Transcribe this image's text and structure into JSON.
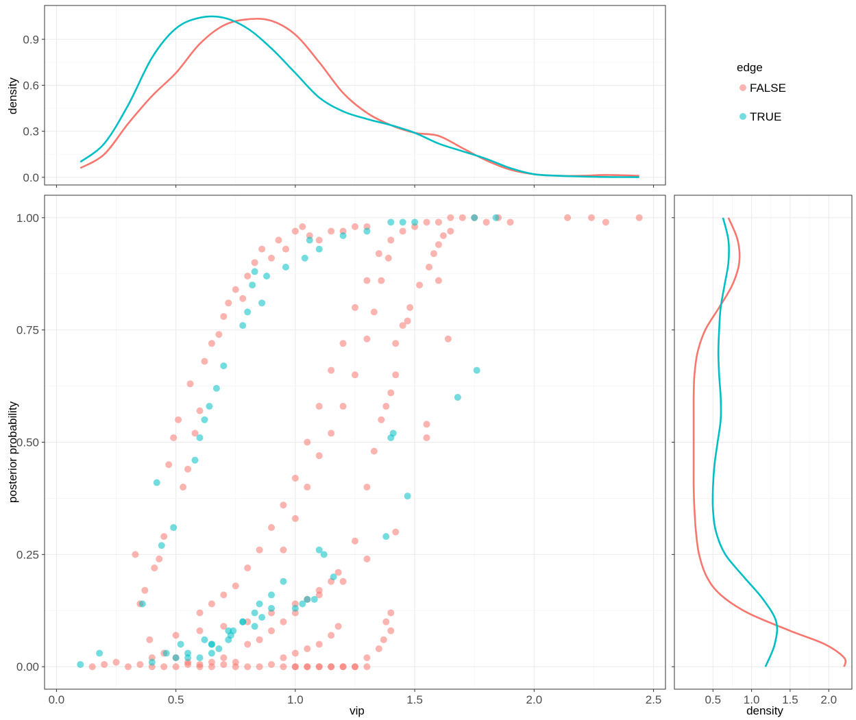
{
  "chart_data": [
    {
      "id": "top-density",
      "type": "line",
      "xlabel": "",
      "ylabel": "density",
      "xlim": [
        -0.05,
        2.55
      ],
      "ylim": [
        -0.05,
        1.12
      ],
      "y_ticks": [
        "0.0",
        "0.3",
        "0.6",
        "0.9"
      ],
      "y_tick_values": [
        0.0,
        0.3,
        0.6,
        0.9
      ],
      "grid": true,
      "series": [
        {
          "name": "FALSE",
          "color": "#f8766d",
          "x": [
            0.1,
            0.2,
            0.3,
            0.4,
            0.5,
            0.6,
            0.7,
            0.8,
            0.9,
            1.0,
            1.1,
            1.2,
            1.3,
            1.4,
            1.5,
            1.6,
            1.7,
            1.8,
            1.9,
            2.0,
            2.1,
            2.2,
            2.3,
            2.44
          ],
          "y": [
            0.06,
            0.15,
            0.35,
            0.53,
            0.68,
            0.87,
            0.99,
            1.03,
            1.02,
            0.93,
            0.75,
            0.55,
            0.42,
            0.34,
            0.29,
            0.27,
            0.19,
            0.11,
            0.05,
            0.02,
            0.01,
            0.01,
            0.015,
            0.01
          ]
        },
        {
          "name": "TRUE",
          "color": "#00bfc4",
          "x": [
            0.1,
            0.2,
            0.3,
            0.4,
            0.5,
            0.6,
            0.7,
            0.8,
            0.9,
            1.0,
            1.1,
            1.2,
            1.3,
            1.4,
            1.5,
            1.6,
            1.7,
            1.8,
            1.9,
            2.0,
            2.1,
            2.2,
            2.3,
            2.44
          ],
          "y": [
            0.1,
            0.22,
            0.47,
            0.78,
            0.97,
            1.04,
            1.04,
            0.97,
            0.84,
            0.68,
            0.52,
            0.43,
            0.38,
            0.34,
            0.29,
            0.22,
            0.17,
            0.12,
            0.06,
            0.02,
            0.01,
            0.005,
            0.002,
            0.001
          ]
        }
      ]
    },
    {
      "id": "main-scatter",
      "type": "scatter",
      "xlabel": "vip",
      "ylabel": "posterior probability",
      "xlim": [
        -0.05,
        2.55
      ],
      "ylim": [
        -0.05,
        1.05
      ],
      "x_ticks": [
        "0.0",
        "0.5",
        "1.0",
        "1.5",
        "2.0",
        "2.5"
      ],
      "x_tick_values": [
        0.0,
        0.5,
        1.0,
        1.5,
        2.0,
        2.5
      ],
      "y_ticks": [
        "0.00",
        "0.25",
        "0.50",
        "0.75",
        "1.00"
      ],
      "y_tick_values": [
        0.0,
        0.25,
        0.5,
        0.75,
        1.0
      ],
      "grid": true,
      "series": [
        {
          "name": "FALSE",
          "color": "#f8766d",
          "x": [
            0.33,
            0.35,
            0.37,
            0.39,
            0.41,
            0.43,
            0.45,
            0.47,
            0.49,
            0.51,
            0.53,
            0.55,
            0.56,
            0.58,
            0.6,
            0.62,
            0.65,
            0.68,
            0.7,
            0.72,
            0.75,
            0.78,
            0.8,
            0.83,
            0.86,
            0.9,
            0.93,
            0.96,
            1.0,
            1.03,
            1.06,
            1.1,
            1.15,
            1.2,
            1.25,
            1.3,
            0.6,
            0.65,
            0.7,
            0.75,
            0.8,
            0.85,
            0.9,
            0.95,
            1.0,
            1.05,
            1.1,
            1.15,
            1.2,
            1.25,
            1.3,
            1.35,
            1.4,
            1.45,
            1.5,
            1.55,
            1.6,
            1.65,
            1.7,
            1.75,
            1.8,
            1.85,
            1.9,
            2.14,
            2.24,
            2.3,
            2.44,
            0.95,
            1.0,
            1.05,
            1.1,
            1.15,
            1.2,
            1.25,
            1.3,
            1.33,
            1.36,
            1.39,
            1.42,
            1.45,
            1.48,
            1.52,
            1.56,
            1.58,
            1.6,
            1.62,
            1.65,
            0.5,
            0.6,
            0.7,
            0.8,
            0.9,
            1.0,
            1.1,
            1.2,
            1.3,
            0.8,
            0.85,
            0.9,
            0.95,
            1.0,
            1.05,
            1.1,
            1.15,
            1.18,
            0.95,
            1.0,
            1.05,
            1.1,
            1.15,
            1.18,
            1.25,
            1.3,
            1.33,
            1.36,
            1.38,
            1.4,
            1.42,
            1.38,
            1.4,
            1.3,
            1.35,
            1.37,
            1.4,
            0.15,
            0.2,
            0.25,
            0.3,
            0.35,
            0.4,
            0.45,
            0.5,
            0.55,
            0.6,
            0.65,
            0.7,
            0.75,
            0.8,
            0.85,
            0.9,
            0.95,
            1.0,
            1.05,
            1.1,
            1.15,
            1.2,
            1.25,
            1.3,
            0.4,
            0.45,
            0.5,
            0.55,
            0.6,
            0.65,
            0.7,
            0.75,
            1.0,
            1.05,
            1.1,
            1.15,
            1.2,
            1.25,
            1.64,
            1.6,
            1.55,
            1.55,
            1.42,
            1.47
          ],
          "y": [
            0.25,
            0.14,
            0.17,
            0.06,
            0.22,
            0.24,
            0.29,
            0.45,
            0.51,
            0.55,
            0.4,
            0.44,
            0.63,
            0.52,
            0.57,
            0.68,
            0.72,
            0.74,
            0.78,
            0.81,
            0.84,
            0.82,
            0.87,
            0.9,
            0.93,
            0.91,
            0.95,
            0.93,
            0.97,
            0.98,
            0.96,
            0.95,
            0.97,
            0.97,
            0.98,
            0.98,
            0.12,
            0.14,
            0.16,
            0.18,
            0.22,
            0.26,
            0.31,
            0.36,
            0.42,
            0.5,
            0.58,
            0.66,
            0.72,
            0.8,
            0.86,
            0.92,
            0.95,
            0.97,
            0.98,
            0.99,
            0.99,
            1.0,
            1.0,
            1.0,
            0.99,
            1.0,
            0.99,
            1.0,
            1.0,
            0.99,
            1.0,
            0.26,
            0.33,
            0.4,
            0.47,
            0.52,
            0.58,
            0.65,
            0.73,
            0.79,
            0.86,
            0.91,
            0.72,
            0.76,
            0.8,
            0.85,
            0.89,
            0.92,
            0.94,
            0.96,
            0.97,
            0.07,
            0.08,
            0.09,
            0.1,
            0.12,
            0.14,
            0.16,
            0.19,
            0.24,
            0.05,
            0.06,
            0.08,
            0.1,
            0.12,
            0.15,
            0.17,
            0.19,
            0.21,
            0.02,
            0.03,
            0.04,
            0.05,
            0.07,
            0.09,
            0.28,
            0.4,
            0.48,
            0.55,
            0.58,
            0.61,
            0.65,
            0.1,
            0.12,
            0.02,
            0.04,
            0.06,
            0.08,
            0.0,
            0.005,
            0.01,
            0.0,
            0.005,
            0.0,
            0.0,
            0.0,
            0.005,
            0.0,
            0.0,
            0.005,
            0.0,
            0.0,
            0.0,
            0.005,
            0.0,
            0.0,
            0.0,
            0.0,
            0.0,
            0.0,
            0.0,
            0.0,
            0.02,
            0.03,
            0.02,
            0.01,
            0.005,
            0.01,
            0.02,
            0.01,
            0.0,
            0.0,
            0.0,
            0.0,
            0.0,
            0.0,
            0.73,
            0.86,
            0.54,
            0.51,
            0.3,
            0.77
          ]
        },
        {
          "name": "TRUE",
          "color": "#00bfc4",
          "x": [
            0.1,
            0.18,
            0.36,
            0.4,
            0.42,
            0.44,
            0.46,
            0.49,
            0.52,
            0.55,
            0.58,
            0.6,
            0.62,
            0.64,
            0.65,
            0.67,
            0.7,
            0.72,
            0.73,
            0.78,
            0.8,
            0.82,
            0.83,
            0.86,
            0.88,
            0.96,
            1.04,
            1.06,
            1.1,
            1.2,
            1.3,
            1.4,
            1.45,
            1.5,
            1.75,
            1.84,
            0.62,
            0.65,
            0.72,
            0.78,
            0.83,
            0.85,
            0.9,
            0.95,
            1.0,
            1.05,
            1.1,
            1.12,
            1.16,
            0.74,
            0.78,
            0.83,
            0.86,
            0.9,
            1.03,
            1.08,
            1.4,
            1.41,
            1.38,
            1.47,
            1.68,
            1.76,
            0.5,
            0.55,
            0.6,
            0.65,
            0.68
          ],
          "y": [
            0.005,
            0.03,
            0.14,
            0.01,
            0.41,
            0.27,
            0.03,
            0.31,
            0.05,
            0.03,
            0.46,
            0.51,
            0.55,
            0.58,
            0.05,
            0.62,
            0.67,
            0.06,
            0.07,
            0.76,
            0.79,
            0.85,
            0.88,
            0.81,
            0.87,
            0.89,
            0.91,
            0.95,
            0.93,
            0.96,
            0.97,
            0.99,
            0.99,
            0.99,
            1.0,
            1.0,
            0.06,
            0.05,
            0.08,
            0.1,
            0.12,
            0.14,
            0.16,
            0.19,
            0.13,
            0.15,
            0.26,
            0.25,
            0.2,
            0.08,
            0.1,
            0.09,
            0.11,
            0.13,
            0.14,
            0.15,
            0.51,
            0.52,
            0.29,
            0.38,
            0.6,
            0.66,
            0.02,
            0.02,
            0.02,
            0.03,
            0.04
          ]
        }
      ]
    },
    {
      "id": "right-density",
      "type": "line",
      "xlabel": "density",
      "ylabel": "",
      "xlim": [
        0.0,
        2.3
      ],
      "ylim": [
        -0.05,
        1.05
      ],
      "x_ticks": [
        "0.5",
        "1.0",
        "1.5",
        "2.0"
      ],
      "x_tick_values": [
        0.5,
        1.0,
        1.5,
        2.0
      ],
      "grid": true,
      "series": [
        {
          "name": "FALSE",
          "color": "#f8766d",
          "y": [
            0.0,
            0.02,
            0.05,
            0.08,
            0.12,
            0.16,
            0.2,
            0.25,
            0.3,
            0.35,
            0.4,
            0.45,
            0.5,
            0.55,
            0.6,
            0.65,
            0.7,
            0.75,
            0.8,
            0.85,
            0.9,
            0.95,
            1.0
          ],
          "x": [
            2.2,
            2.2,
            1.95,
            1.5,
            0.95,
            0.6,
            0.42,
            0.32,
            0.28,
            0.26,
            0.25,
            0.25,
            0.25,
            0.25,
            0.25,
            0.26,
            0.3,
            0.4,
            0.58,
            0.75,
            0.84,
            0.82,
            0.7
          ]
        },
        {
          "name": "TRUE",
          "color": "#00bfc4",
          "y": [
            0.0,
            0.05,
            0.1,
            0.15,
            0.2,
            0.25,
            0.3,
            0.35,
            0.4,
            0.45,
            0.5,
            0.55,
            0.6,
            0.65,
            0.7,
            0.75,
            0.8,
            0.85,
            0.9,
            0.95,
            1.0
          ],
          "x": [
            1.18,
            1.3,
            1.32,
            1.15,
            0.9,
            0.66,
            0.54,
            0.5,
            0.5,
            0.52,
            0.56,
            0.6,
            0.6,
            0.58,
            0.57,
            0.58,
            0.6,
            0.65,
            0.7,
            0.7,
            0.63
          ]
        }
      ]
    }
  ],
  "legend": {
    "title": "edge",
    "entries": [
      {
        "label": "FALSE",
        "color": "#f8766d"
      },
      {
        "label": "TRUE",
        "color": "#00bfc4"
      }
    ]
  }
}
